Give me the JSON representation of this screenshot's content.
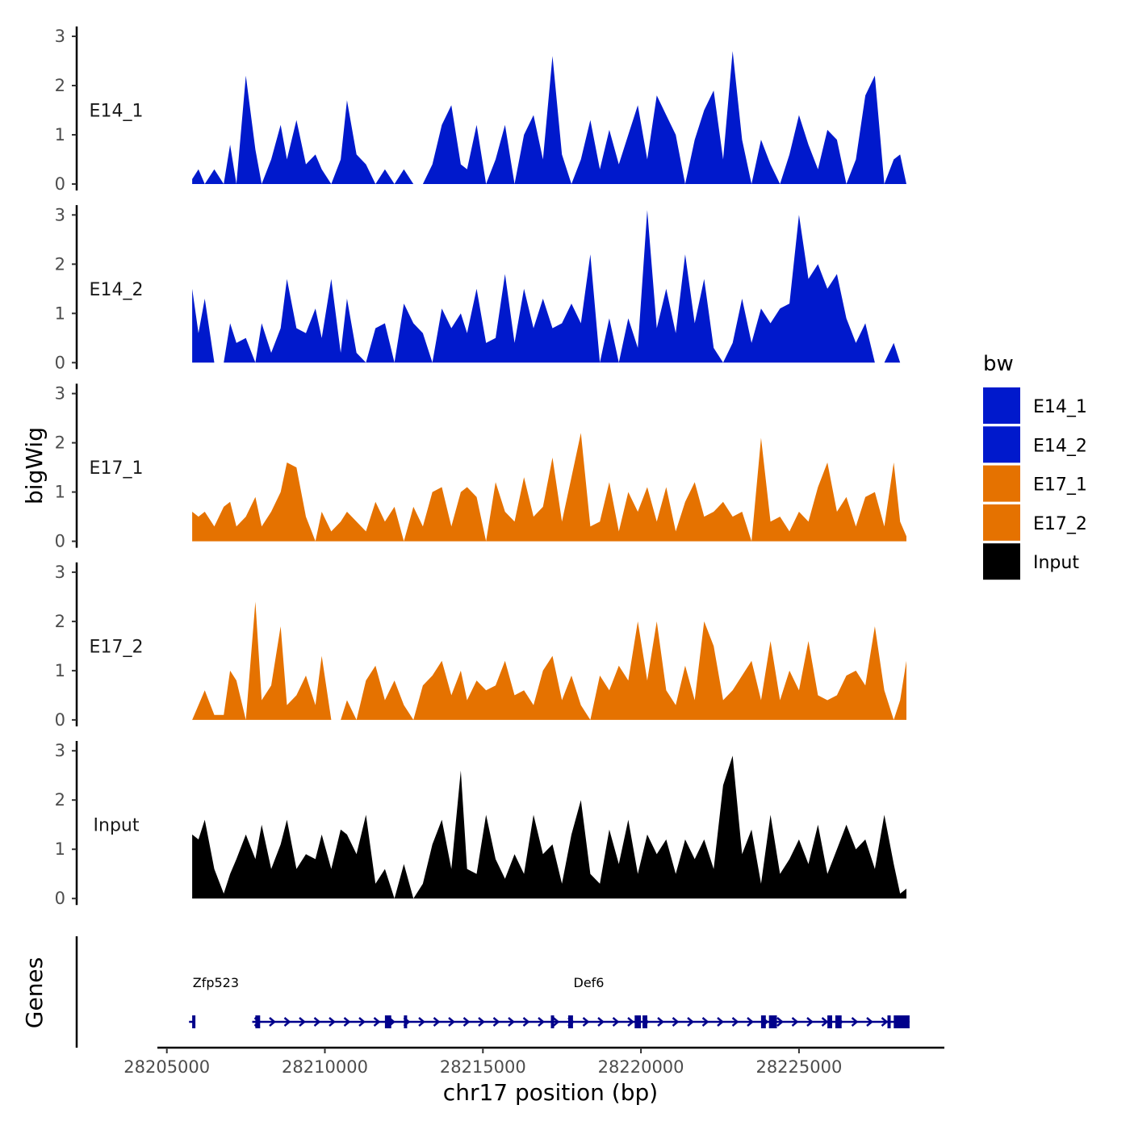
{
  "chart_data": {
    "type": "area",
    "title": "",
    "xlabel": "chr17 position (bp)",
    "ylabel": "bigWig",
    "genes_ylabel": "Genes",
    "xlim": [
      28204700,
      28229600
    ],
    "ylim": [
      0,
      3.2
    ],
    "x_ticks": [
      28205000,
      28210000,
      28215000,
      28220000,
      28225000
    ],
    "y_ticks": [
      0,
      1,
      2,
      3
    ],
    "legend": {
      "title": "bw",
      "entries": [
        {
          "name": "E14_1",
          "color": "#0019CC"
        },
        {
          "name": "E14_2",
          "color": "#0019CC"
        },
        {
          "name": "E17_1",
          "color": "#E57200"
        },
        {
          "name": "E17_2",
          "color": "#E57200"
        },
        {
          "name": "Input",
          "color": "#000000"
        }
      ]
    },
    "tracks": [
      {
        "name": "E14_1",
        "color": "#0019CC",
        "x": [
          28205800,
          28206000,
          28206200,
          28206500,
          28206800,
          28207000,
          28207200,
          28207500,
          28207800,
          28208000,
          28208300,
          28208600,
          28208800,
          28209100,
          28209400,
          28209700,
          28209900,
          28210200,
          28210500,
          28210700,
          28211000,
          28211300,
          28211600,
          28211900,
          28212200,
          28212500,
          28212800,
          28213100,
          28213400,
          28213700,
          28214000,
          28214300,
          28214500,
          28214800,
          28215100,
          28215400,
          28215700,
          28216000,
          28216300,
          28216600,
          28216900,
          28217200,
          28217500,
          28217800,
          28218100,
          28218400,
          28218700,
          28219000,
          28219300,
          28219600,
          28219900,
          28220200,
          28220500,
          28220800,
          28221100,
          28221400,
          28221700,
          28222000,
          28222300,
          28222600,
          28222900,
          28223200,
          28223500,
          28223800,
          28224100,
          28224400,
          28224700,
          28225000,
          28225300,
          28225600,
          28225900,
          28226200,
          28226500,
          28226800,
          28227100,
          28227400,
          28227700,
          28228000,
          28228200,
          28228400
        ],
        "values": [
          0.1,
          0.3,
          0.0,
          0.3,
          0.0,
          0.8,
          0.0,
          2.2,
          0.7,
          0.0,
          0.5,
          1.2,
          0.5,
          1.3,
          0.4,
          0.6,
          0.3,
          0.0,
          0.5,
          1.7,
          0.6,
          0.4,
          0.0,
          0.3,
          0.0,
          0.3,
          0.0,
          0.0,
          0.4,
          1.2,
          1.6,
          0.4,
          0.3,
          1.2,
          0.0,
          0.5,
          1.2,
          0.0,
          1.0,
          1.4,
          0.5,
          2.6,
          0.6,
          0.0,
          0.5,
          1.3,
          0.3,
          1.1,
          0.4,
          1.0,
          1.6,
          0.5,
          1.8,
          1.4,
          1.0,
          0.0,
          0.9,
          1.5,
          1.9,
          0.5,
          2.7,
          0.9,
          0.0,
          0.9,
          0.4,
          0.0,
          0.6,
          1.4,
          0.8,
          0.3,
          1.1,
          0.9,
          0.0,
          0.5,
          1.8,
          2.2,
          0.0,
          0.5,
          0.6,
          0.0
        ]
      },
      {
        "name": "E14_2",
        "color": "#0019CC",
        "x": [
          28205800,
          28206000,
          28206200,
          28206500,
          28206800,
          28207000,
          28207200,
          28207500,
          28207800,
          28208000,
          28208300,
          28208600,
          28208800,
          28209100,
          28209400,
          28209700,
          28209900,
          28210200,
          28210500,
          28210700,
          28211000,
          28211300,
          28211600,
          28211900,
          28212200,
          28212500,
          28212800,
          28213100,
          28213400,
          28213700,
          28214000,
          28214300,
          28214500,
          28214800,
          28215100,
          28215400,
          28215700,
          28216000,
          28216300,
          28216600,
          28216900,
          28217200,
          28217500,
          28217800,
          28218100,
          28218400,
          28218700,
          28219000,
          28219300,
          28219600,
          28219900,
          28220200,
          28220500,
          28220800,
          28221100,
          28221400,
          28221700,
          28222000,
          28222300,
          28222600,
          28222900,
          28223200,
          28223500,
          28223800,
          28224100,
          28224400,
          28224700,
          28225000,
          28225300,
          28225600,
          28225900,
          28226200,
          28226500,
          28226800,
          28227100,
          28227400,
          28227700,
          28228000,
          28228200,
          28228400
        ],
        "values": [
          1.5,
          0.6,
          1.3,
          0.0,
          0.0,
          0.8,
          0.4,
          0.5,
          0.0,
          0.8,
          0.2,
          0.7,
          1.7,
          0.7,
          0.6,
          1.1,
          0.5,
          1.7,
          0.2,
          1.3,
          0.2,
          0.0,
          0.7,
          0.8,
          0.0,
          1.2,
          0.8,
          0.6,
          0.0,
          1.1,
          0.7,
          1.0,
          0.6,
          1.5,
          0.4,
          0.5,
          1.8,
          0.4,
          1.5,
          0.7,
          1.3,
          0.7,
          0.8,
          1.2,
          0.8,
          2.2,
          0.0,
          0.9,
          0.0,
          0.9,
          0.3,
          3.1,
          0.7,
          1.5,
          0.6,
          2.2,
          0.8,
          1.7,
          0.3,
          0.0,
          0.4,
          1.3,
          0.4,
          1.1,
          0.8,
          1.1,
          1.2,
          3.0,
          1.7,
          2.0,
          1.5,
          1.8,
          0.9,
          0.4,
          0.8,
          0.0,
          0.0,
          0.4,
          0.0,
          0.0
        ]
      },
      {
        "name": "E17_1",
        "color": "#E57200",
        "x": [
          28205800,
          28206000,
          28206200,
          28206500,
          28206800,
          28207000,
          28207200,
          28207500,
          28207800,
          28208000,
          28208300,
          28208600,
          28208800,
          28209100,
          28209400,
          28209700,
          28209900,
          28210200,
          28210500,
          28210700,
          28211000,
          28211300,
          28211600,
          28211900,
          28212200,
          28212500,
          28212800,
          28213100,
          28213400,
          28213700,
          28214000,
          28214300,
          28214500,
          28214800,
          28215100,
          28215400,
          28215700,
          28216000,
          28216300,
          28216600,
          28216900,
          28217200,
          28217500,
          28217800,
          28218100,
          28218400,
          28218700,
          28219000,
          28219300,
          28219600,
          28219900,
          28220200,
          28220500,
          28220800,
          28221100,
          28221400,
          28221700,
          28222000,
          28222300,
          28222600,
          28222900,
          28223200,
          28223500,
          28223800,
          28224100,
          28224400,
          28224700,
          28225000,
          28225300,
          28225600,
          28225900,
          28226200,
          28226500,
          28226800,
          28227100,
          28227400,
          28227700,
          28228000,
          28228200,
          28228400
        ],
        "values": [
          0.6,
          0.5,
          0.6,
          0.3,
          0.7,
          0.8,
          0.3,
          0.5,
          0.9,
          0.3,
          0.6,
          1.0,
          1.6,
          1.5,
          0.5,
          0.0,
          0.6,
          0.2,
          0.4,
          0.6,
          0.4,
          0.2,
          0.8,
          0.4,
          0.7,
          0.0,
          0.7,
          0.3,
          1.0,
          1.1,
          0.3,
          1.0,
          1.1,
          0.9,
          0.0,
          1.2,
          0.6,
          0.4,
          1.3,
          0.5,
          0.7,
          1.7,
          0.4,
          1.3,
          2.2,
          0.3,
          0.4,
          1.2,
          0.2,
          1.0,
          0.6,
          1.1,
          0.4,
          1.1,
          0.2,
          0.8,
          1.2,
          0.5,
          0.6,
          0.8,
          0.5,
          0.6,
          0.0,
          2.1,
          0.4,
          0.5,
          0.2,
          0.6,
          0.4,
          1.1,
          1.6,
          0.6,
          0.9,
          0.3,
          0.9,
          1.0,
          0.3,
          1.6,
          0.4,
          0.1
        ]
      },
      {
        "name": "E17_2",
        "color": "#E57200",
        "x": [
          28205800,
          28206000,
          28206200,
          28206500,
          28206800,
          28207000,
          28207200,
          28207500,
          28207800,
          28208000,
          28208300,
          28208600,
          28208800,
          28209100,
          28209400,
          28209700,
          28209900,
          28210200,
          28210500,
          28210700,
          28211000,
          28211300,
          28211600,
          28211900,
          28212200,
          28212500,
          28212800,
          28213100,
          28213400,
          28213700,
          28214000,
          28214300,
          28214500,
          28214800,
          28215100,
          28215400,
          28215700,
          28216000,
          28216300,
          28216600,
          28216900,
          28217200,
          28217500,
          28217800,
          28218100,
          28218400,
          28218700,
          28219000,
          28219300,
          28219600,
          28219900,
          28220200,
          28220500,
          28220800,
          28221100,
          28221400,
          28221700,
          28222000,
          28222300,
          28222600,
          28222900,
          28223200,
          28223500,
          28223800,
          28224100,
          28224400,
          28224700,
          28225000,
          28225300,
          28225600,
          28225900,
          28226200,
          28226500,
          28226800,
          28227100,
          28227400,
          28227700,
          28228000,
          28228200,
          28228400
        ],
        "values": [
          0.0,
          0.3,
          0.6,
          0.1,
          0.1,
          1.0,
          0.8,
          0.0,
          2.4,
          0.4,
          0.7,
          1.9,
          0.3,
          0.5,
          0.9,
          0.3,
          1.3,
          0.0,
          0.0,
          0.4,
          0.0,
          0.8,
          1.1,
          0.4,
          0.8,
          0.3,
          0.0,
          0.7,
          0.9,
          1.2,
          0.5,
          1.0,
          0.4,
          0.8,
          0.6,
          0.7,
          1.2,
          0.5,
          0.6,
          0.3,
          1.0,
          1.3,
          0.4,
          0.9,
          0.3,
          0.0,
          0.9,
          0.6,
          1.1,
          0.8,
          2.0,
          0.8,
          2.0,
          0.6,
          0.3,
          1.1,
          0.4,
          2.0,
          1.5,
          0.4,
          0.6,
          0.9,
          1.2,
          0.4,
          1.6,
          0.4,
          1.0,
          0.6,
          1.6,
          0.5,
          0.4,
          0.5,
          0.9,
          1.0,
          0.7,
          1.9,
          0.6,
          0.0,
          0.4,
          1.2
        ]
      },
      {
        "name": "Input",
        "color": "#000000",
        "x": [
          28205800,
          28206000,
          28206200,
          28206500,
          28206800,
          28207000,
          28207200,
          28207500,
          28207800,
          28208000,
          28208300,
          28208600,
          28208800,
          28209100,
          28209400,
          28209700,
          28209900,
          28210200,
          28210500,
          28210700,
          28211000,
          28211300,
          28211600,
          28211900,
          28212200,
          28212500,
          28212800,
          28213100,
          28213400,
          28213700,
          28214000,
          28214300,
          28214500,
          28214800,
          28215100,
          28215400,
          28215700,
          28216000,
          28216300,
          28216600,
          28216900,
          28217200,
          28217500,
          28217800,
          28218100,
          28218400,
          28218700,
          28219000,
          28219300,
          28219600,
          28219900,
          28220200,
          28220500,
          28220800,
          28221100,
          28221400,
          28221700,
          28222000,
          28222300,
          28222600,
          28222900,
          28223200,
          28223500,
          28223800,
          28224100,
          28224400,
          28224700,
          28225000,
          28225300,
          28225600,
          28225900,
          28226200,
          28226500,
          28226800,
          28227100,
          28227400,
          28227700,
          28228000,
          28228200,
          28228400
        ],
        "values": [
          1.3,
          1.2,
          1.6,
          0.6,
          0.1,
          0.5,
          0.8,
          1.3,
          0.8,
          1.5,
          0.6,
          1.1,
          1.6,
          0.6,
          0.9,
          0.8,
          1.3,
          0.6,
          1.4,
          1.3,
          0.9,
          1.7,
          0.3,
          0.6,
          0.0,
          0.7,
          0.0,
          0.3,
          1.1,
          1.6,
          0.6,
          2.6,
          0.6,
          0.5,
          1.7,
          0.8,
          0.4,
          0.9,
          0.5,
          1.7,
          0.9,
          1.1,
          0.3,
          1.3,
          2.0,
          0.5,
          0.3,
          1.4,
          0.7,
          1.6,
          0.5,
          1.3,
          0.9,
          1.2,
          0.5,
          1.2,
          0.8,
          1.2,
          0.6,
          2.3,
          2.9,
          0.9,
          1.4,
          0.3,
          1.7,
          0.5,
          0.8,
          1.2,
          0.7,
          1.5,
          0.5,
          1.0,
          1.5,
          1.0,
          1.2,
          0.6,
          1.7,
          0.7,
          0.1,
          0.2
        ]
      }
    ],
    "genes": [
      {
        "name": "Zfp523",
        "label_x": 28206550,
        "segments": [
          {
            "start": 28205700,
            "end": 28205900
          }
        ]
      },
      {
        "name": "Def6",
        "label_x": 28218350,
        "segments": [
          {
            "start": 28207700,
            "end": 28228500
          }
        ]
      }
    ],
    "exons": [
      {
        "start": 28205800,
        "end": 28205900
      },
      {
        "start": 28207800,
        "end": 28207950
      },
      {
        "start": 28211900,
        "end": 28212100
      },
      {
        "start": 28212500,
        "end": 28212550
      },
      {
        "start": 28217150,
        "end": 28217250
      },
      {
        "start": 28217700,
        "end": 28217850
      },
      {
        "start": 28219800,
        "end": 28220000
      },
      {
        "start": 28220050,
        "end": 28220200
      },
      {
        "start": 28223800,
        "end": 28223950
      },
      {
        "start": 28224050,
        "end": 28224300
      },
      {
        "start": 28225900,
        "end": 28226050
      },
      {
        "start": 28226150,
        "end": 28226350
      },
      {
        "start": 28227800,
        "end": 28227900
      },
      {
        "start": 28228000,
        "end": 28228500
      }
    ]
  }
}
